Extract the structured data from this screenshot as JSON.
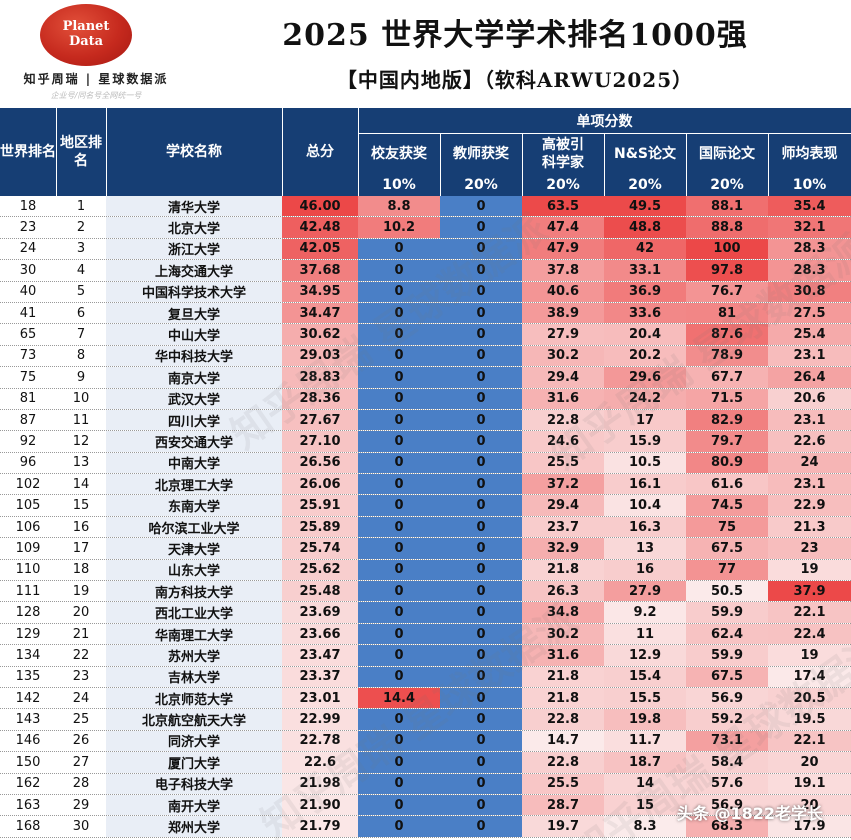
{
  "header": {
    "logo_line1": "Planet",
    "logo_line2": "Data",
    "brand": "知乎周瑞 | 星球数据派",
    "brand_sub": "企业号/同名号全网统一号",
    "title": "2025 世界大学学术排名1000强",
    "subtitle": "【中国内地版】（软科ARWU2025）"
  },
  "columns": {
    "world_rank": "世界排名",
    "region_rank": "地区排名",
    "school": "学校名称",
    "total": "总分",
    "group": "单项分数",
    "alumni": "校友获奖",
    "alumni_w": "10%",
    "award": "教师获奖",
    "award_w": "20%",
    "hici": "高被引科学家",
    "hici_w": "20%",
    "ns": "N&S论文",
    "ns_w": "20%",
    "pub": "国际论文",
    "pub_w": "20%",
    "pcp": "师均表现",
    "pcp_w": "10%"
  },
  "colors": {
    "header_bg": "#163e74",
    "teacher_col": "#4a7fc6",
    "heat_high": "#ee4a4a",
    "heat_low": "#fbe9e9"
  },
  "rows": [
    {
      "world": "18",
      "region": "1",
      "name": "清华大学",
      "total": "46.00",
      "alumni": "8.8",
      "award": "0",
      "hici": "63.5",
      "ns": "49.5",
      "pub": "88.1",
      "pcp": "35.4"
    },
    {
      "world": "23",
      "region": "2",
      "name": "北京大学",
      "total": "42.48",
      "alumni": "10.2",
      "award": "0",
      "hici": "47.4",
      "ns": "48.8",
      "pub": "88.8",
      "pcp": "32.1"
    },
    {
      "world": "24",
      "region": "3",
      "name": "浙江大学",
      "total": "42.05",
      "alumni": "0",
      "award": "0",
      "hici": "47.9",
      "ns": "42",
      "pub": "100",
      "pcp": "28.3"
    },
    {
      "world": "30",
      "region": "4",
      "name": "上海交通大学",
      "total": "37.68",
      "alumni": "0",
      "award": "0",
      "hici": "37.8",
      "ns": "33.1",
      "pub": "97.8",
      "pcp": "28.3"
    },
    {
      "world": "40",
      "region": "5",
      "name": "中国科学技术大学",
      "total": "34.95",
      "alumni": "0",
      "award": "0",
      "hici": "40.6",
      "ns": "36.9",
      "pub": "76.7",
      "pcp": "30.8"
    },
    {
      "world": "41",
      "region": "6",
      "name": "复旦大学",
      "total": "34.47",
      "alumni": "0",
      "award": "0",
      "hici": "38.9",
      "ns": "33.6",
      "pub": "81",
      "pcp": "27.5"
    },
    {
      "world": "65",
      "region": "7",
      "name": "中山大学",
      "total": "30.62",
      "alumni": "0",
      "award": "0",
      "hici": "27.9",
      "ns": "20.4",
      "pub": "87.6",
      "pcp": "25.4"
    },
    {
      "world": "73",
      "region": "8",
      "name": "华中科技大学",
      "total": "29.03",
      "alumni": "0",
      "award": "0",
      "hici": "30.2",
      "ns": "20.2",
      "pub": "78.9",
      "pcp": "23.1"
    },
    {
      "world": "75",
      "region": "9",
      "name": "南京大学",
      "total": "28.83",
      "alumni": "0",
      "award": "0",
      "hici": "29.4",
      "ns": "29.6",
      "pub": "67.7",
      "pcp": "26.4"
    },
    {
      "world": "81",
      "region": "10",
      "name": "武汉大学",
      "total": "28.36",
      "alumni": "0",
      "award": "0",
      "hici": "31.6",
      "ns": "24.2",
      "pub": "71.5",
      "pcp": "20.6"
    },
    {
      "world": "87",
      "region": "11",
      "name": "四川大学",
      "total": "27.67",
      "alumni": "0",
      "award": "0",
      "hici": "22.8",
      "ns": "17",
      "pub": "82.9",
      "pcp": "23.1"
    },
    {
      "world": "92",
      "region": "12",
      "name": "西安交通大学",
      "total": "27.10",
      "alumni": "0",
      "award": "0",
      "hici": "24.6",
      "ns": "15.9",
      "pub": "79.7",
      "pcp": "22.6"
    },
    {
      "world": "96",
      "region": "13",
      "name": "中南大学",
      "total": "26.56",
      "alumni": "0",
      "award": "0",
      "hici": "25.5",
      "ns": "10.5",
      "pub": "80.9",
      "pcp": "24"
    },
    {
      "world": "102",
      "region": "14",
      "name": "北京理工大学",
      "total": "26.06",
      "alumni": "0",
      "award": "0",
      "hici": "37.2",
      "ns": "16.1",
      "pub": "61.6",
      "pcp": "23.1"
    },
    {
      "world": "105",
      "region": "15",
      "name": "东南大学",
      "total": "25.91",
      "alumni": "0",
      "award": "0",
      "hici": "29.4",
      "ns": "10.4",
      "pub": "74.5",
      "pcp": "22.9"
    },
    {
      "world": "106",
      "region": "16",
      "name": "哈尔滨工业大学",
      "total": "25.89",
      "alumni": "0",
      "award": "0",
      "hici": "23.7",
      "ns": "16.3",
      "pub": "75",
      "pcp": "21.3"
    },
    {
      "world": "109",
      "region": "17",
      "name": "天津大学",
      "total": "25.74",
      "alumni": "0",
      "award": "0",
      "hici": "32.9",
      "ns": "13",
      "pub": "67.5",
      "pcp": "23"
    },
    {
      "world": "110",
      "region": "18",
      "name": "山东大学",
      "total": "25.62",
      "alumni": "0",
      "award": "0",
      "hici": "21.8",
      "ns": "16",
      "pub": "77",
      "pcp": "19"
    },
    {
      "world": "111",
      "region": "19",
      "name": "南方科技大学",
      "total": "25.48",
      "alumni": "0",
      "award": "0",
      "hici": "26.3",
      "ns": "27.9",
      "pub": "50.5",
      "pcp": "37.9"
    },
    {
      "world": "128",
      "region": "20",
      "name": "西北工业大学",
      "total": "23.69",
      "alumni": "0",
      "award": "0",
      "hici": "34.8",
      "ns": "9.2",
      "pub": "59.9",
      "pcp": "22.1"
    },
    {
      "world": "129",
      "region": "21",
      "name": "华南理工大学",
      "total": "23.66",
      "alumni": "0",
      "award": "0",
      "hici": "30.2",
      "ns": "11",
      "pub": "62.4",
      "pcp": "22.4"
    },
    {
      "world": "134",
      "region": "22",
      "name": "苏州大学",
      "total": "23.47",
      "alumni": "0",
      "award": "0",
      "hici": "31.6",
      "ns": "12.9",
      "pub": "59.9",
      "pcp": "19"
    },
    {
      "world": "135",
      "region": "23",
      "name": "吉林大学",
      "total": "23.37",
      "alumni": "0",
      "award": "0",
      "hici": "21.8",
      "ns": "15.4",
      "pub": "67.5",
      "pcp": "17.4"
    },
    {
      "world": "142",
      "region": "24",
      "name": "北京师范大学",
      "total": "23.01",
      "alumni": "14.4",
      "award": "0",
      "hici": "21.8",
      "ns": "15.5",
      "pub": "56.9",
      "pcp": "20.5"
    },
    {
      "world": "143",
      "region": "25",
      "name": "北京航空航天大学",
      "total": "22.99",
      "alumni": "0",
      "award": "0",
      "hici": "22.8",
      "ns": "19.8",
      "pub": "59.2",
      "pcp": "19.5"
    },
    {
      "world": "146",
      "region": "26",
      "name": "同济大学",
      "total": "22.78",
      "alumni": "0",
      "award": "0",
      "hici": "14.7",
      "ns": "11.7",
      "pub": "73.1",
      "pcp": "22.1"
    },
    {
      "world": "150",
      "region": "27",
      "name": "厦门大学",
      "total": "22.6",
      "alumni": "0",
      "award": "0",
      "hici": "22.8",
      "ns": "18.7",
      "pub": "58.4",
      "pcp": "20"
    },
    {
      "world": "162",
      "region": "28",
      "name": "电子科技大学",
      "total": "21.98",
      "alumni": "0",
      "award": "0",
      "hici": "25.5",
      "ns": "14",
      "pub": "57.6",
      "pcp": "19.1"
    },
    {
      "world": "163",
      "region": "29",
      "name": "南开大学",
      "total": "21.90",
      "alumni": "0",
      "award": "0",
      "hici": "28.7",
      "ns": "15",
      "pub": "56.9",
      "pcp": "20"
    },
    {
      "world": "168",
      "region": "30",
      "name": "郑州大学",
      "total": "21.79",
      "alumni": "0",
      "award": "0",
      "hici": "19.7",
      "ns": "8.3",
      "pub": "68.3",
      "pcp": "17.9"
    }
  ],
  "watermark": "头条 @1822老学长",
  "faint_watermark": "知乎周瑞 星球数据派"
}
